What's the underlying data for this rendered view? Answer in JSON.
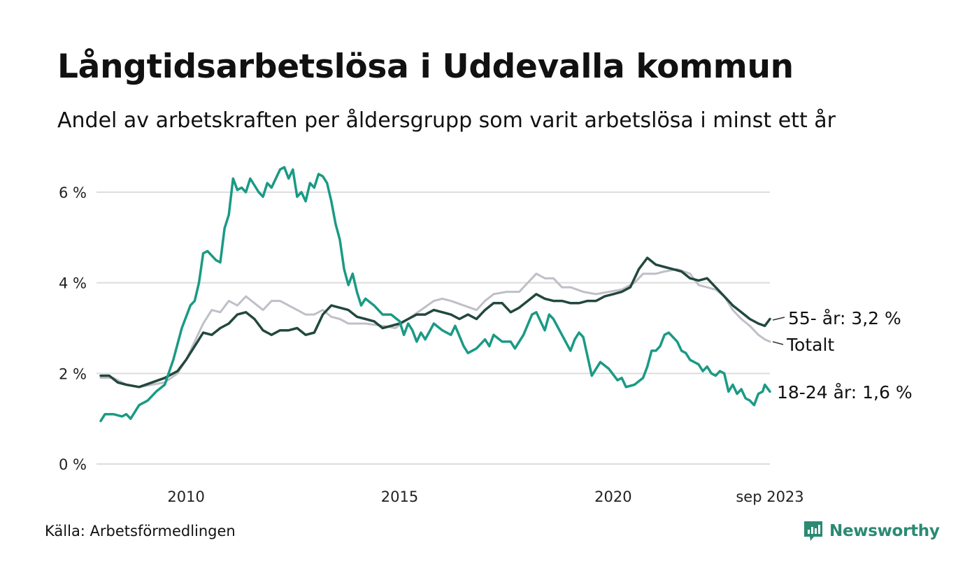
{
  "header": {
    "title": "Långtidsarbetslösa i Uddevalla kommun",
    "subtitle": "Andel av arbetskraften per åldersgrupp som varit arbetslösa i minst ett år"
  },
  "footer": {
    "source": "Källa: Arbetsförmedlingen",
    "brand": "Newsworthy"
  },
  "colors": {
    "young": "#1a9a85",
    "old": "#22483e",
    "total": "#bfbfc8",
    "grid": "#dddddd",
    "brand": "#2a8a72"
  },
  "chart_data": {
    "type": "line",
    "title": "Långtidsarbetslösa i Uddevalla kommun",
    "subtitle": "Andel av arbetskraften per åldersgrupp som varit arbetslösa i minst ett år",
    "xlabel": "",
    "ylabel": "",
    "x_range": [
      2008.0,
      2023.67
    ],
    "ylim": [
      0,
      6.6
    ],
    "y_ticks": [
      {
        "value": 0,
        "label": "0 %"
      },
      {
        "value": 2,
        "label": "2 %"
      },
      {
        "value": 4,
        "label": "4 %"
      },
      {
        "value": 6,
        "label": "6 %"
      }
    ],
    "x_ticks": [
      {
        "value": 2010,
        "label": "2010"
      },
      {
        "value": 2015,
        "label": "2015"
      },
      {
        "value": 2020,
        "label": "2020"
      },
      {
        "value": 2023.67,
        "label": "sep 2023"
      }
    ],
    "series": [
      {
        "name": "Totalt",
        "key": "total",
        "end_label": "Totalt",
        "points": [
          [
            2008.0,
            1.9
          ],
          [
            2008.3,
            1.9
          ],
          [
            2008.6,
            1.75
          ],
          [
            2008.9,
            1.7
          ],
          [
            2009.2,
            1.75
          ],
          [
            2009.5,
            1.8
          ],
          [
            2009.8,
            2.0
          ],
          [
            2010.0,
            2.3
          ],
          [
            2010.2,
            2.7
          ],
          [
            2010.4,
            3.1
          ],
          [
            2010.6,
            3.4
          ],
          [
            2010.8,
            3.35
          ],
          [
            2011.0,
            3.6
          ],
          [
            2011.2,
            3.5
          ],
          [
            2011.4,
            3.7
          ],
          [
            2011.6,
            3.55
          ],
          [
            2011.8,
            3.4
          ],
          [
            2012.0,
            3.6
          ],
          [
            2012.2,
            3.6
          ],
          [
            2012.4,
            3.5
          ],
          [
            2012.6,
            3.4
          ],
          [
            2012.8,
            3.3
          ],
          [
            2013.0,
            3.3
          ],
          [
            2013.2,
            3.4
          ],
          [
            2013.4,
            3.25
          ],
          [
            2013.6,
            3.2
          ],
          [
            2013.8,
            3.1
          ],
          [
            2014.2,
            3.1
          ],
          [
            2014.6,
            3.05
          ],
          [
            2014.9,
            3.0
          ],
          [
            2015.2,
            3.2
          ],
          [
            2015.5,
            3.4
          ],
          [
            2015.8,
            3.6
          ],
          [
            2016.0,
            3.65
          ],
          [
            2016.2,
            3.6
          ],
          [
            2016.5,
            3.5
          ],
          [
            2016.8,
            3.4
          ],
          [
            2017.0,
            3.6
          ],
          [
            2017.2,
            3.75
          ],
          [
            2017.5,
            3.8
          ],
          [
            2017.8,
            3.8
          ],
          [
            2018.0,
            4.0
          ],
          [
            2018.2,
            4.2
          ],
          [
            2018.4,
            4.1
          ],
          [
            2018.6,
            4.1
          ],
          [
            2018.8,
            3.9
          ],
          [
            2019.0,
            3.9
          ],
          [
            2019.3,
            3.8
          ],
          [
            2019.6,
            3.75
          ],
          [
            2019.9,
            3.8
          ],
          [
            2020.2,
            3.85
          ],
          [
            2020.5,
            4.0
          ],
          [
            2020.7,
            4.2
          ],
          [
            2021.0,
            4.2
          ],
          [
            2021.2,
            4.25
          ],
          [
            2021.5,
            4.3
          ],
          [
            2021.8,
            4.2
          ],
          [
            2022.0,
            3.95
          ],
          [
            2022.2,
            3.9
          ],
          [
            2022.4,
            3.85
          ],
          [
            2022.6,
            3.7
          ],
          [
            2022.8,
            3.4
          ],
          [
            2023.0,
            3.2
          ],
          [
            2023.2,
            3.05
          ],
          [
            2023.4,
            2.85
          ],
          [
            2023.55,
            2.75
          ],
          [
            2023.67,
            2.7
          ]
        ]
      },
      {
        "name": "55- år",
        "key": "old",
        "end_label": "55- år: 3,2 %",
        "points": [
          [
            2008.0,
            1.95
          ],
          [
            2008.2,
            1.95
          ],
          [
            2008.4,
            1.8
          ],
          [
            2008.6,
            1.75
          ],
          [
            2008.9,
            1.7
          ],
          [
            2009.2,
            1.8
          ],
          [
            2009.5,
            1.9
          ],
          [
            2009.8,
            2.05
          ],
          [
            2010.0,
            2.3
          ],
          [
            2010.2,
            2.6
          ],
          [
            2010.4,
            2.9
          ],
          [
            2010.6,
            2.85
          ],
          [
            2010.8,
            3.0
          ],
          [
            2011.0,
            3.1
          ],
          [
            2011.2,
            3.3
          ],
          [
            2011.4,
            3.35
          ],
          [
            2011.6,
            3.2
          ],
          [
            2011.8,
            2.95
          ],
          [
            2012.0,
            2.85
          ],
          [
            2012.2,
            2.95
          ],
          [
            2012.4,
            2.95
          ],
          [
            2012.6,
            3.0
          ],
          [
            2012.8,
            2.85
          ],
          [
            2013.0,
            2.9
          ],
          [
            2013.2,
            3.3
          ],
          [
            2013.4,
            3.5
          ],
          [
            2013.6,
            3.45
          ],
          [
            2013.8,
            3.4
          ],
          [
            2014.0,
            3.25
          ],
          [
            2014.2,
            3.2
          ],
          [
            2014.4,
            3.15
          ],
          [
            2014.6,
            3.0
          ],
          [
            2014.8,
            3.05
          ],
          [
            2015.0,
            3.1
          ],
          [
            2015.2,
            3.2
          ],
          [
            2015.4,
            3.3
          ],
          [
            2015.6,
            3.3
          ],
          [
            2015.8,
            3.4
          ],
          [
            2016.0,
            3.35
          ],
          [
            2016.2,
            3.3
          ],
          [
            2016.4,
            3.2
          ],
          [
            2016.6,
            3.3
          ],
          [
            2016.8,
            3.2
          ],
          [
            2017.0,
            3.4
          ],
          [
            2017.2,
            3.55
          ],
          [
            2017.4,
            3.55
          ],
          [
            2017.6,
            3.35
          ],
          [
            2017.8,
            3.45
          ],
          [
            2018.0,
            3.6
          ],
          [
            2018.2,
            3.75
          ],
          [
            2018.4,
            3.65
          ],
          [
            2018.6,
            3.6
          ],
          [
            2018.8,
            3.6
          ],
          [
            2019.0,
            3.55
          ],
          [
            2019.2,
            3.55
          ],
          [
            2019.4,
            3.6
          ],
          [
            2019.6,
            3.6
          ],
          [
            2019.8,
            3.7
          ],
          [
            2020.0,
            3.75
          ],
          [
            2020.2,
            3.8
          ],
          [
            2020.4,
            3.9
          ],
          [
            2020.6,
            4.3
          ],
          [
            2020.8,
            4.55
          ],
          [
            2021.0,
            4.4
          ],
          [
            2021.2,
            4.35
          ],
          [
            2021.4,
            4.3
          ],
          [
            2021.6,
            4.25
          ],
          [
            2021.8,
            4.1
          ],
          [
            2022.0,
            4.05
          ],
          [
            2022.2,
            4.1
          ],
          [
            2022.4,
            3.9
          ],
          [
            2022.6,
            3.7
          ],
          [
            2022.8,
            3.5
          ],
          [
            2023.0,
            3.35
          ],
          [
            2023.2,
            3.2
          ],
          [
            2023.4,
            3.1
          ],
          [
            2023.55,
            3.05
          ],
          [
            2023.67,
            3.2
          ]
        ]
      },
      {
        "name": "18-24 år",
        "key": "young",
        "end_label": "18-24 år: 1,6 %",
        "points": [
          [
            2008.0,
            0.95
          ],
          [
            2008.1,
            1.1
          ],
          [
            2008.3,
            1.1
          ],
          [
            2008.5,
            1.05
          ],
          [
            2008.6,
            1.1
          ],
          [
            2008.7,
            1.0
          ],
          [
            2008.9,
            1.3
          ],
          [
            2009.1,
            1.4
          ],
          [
            2009.3,
            1.6
          ],
          [
            2009.5,
            1.75
          ],
          [
            2009.7,
            2.3
          ],
          [
            2009.9,
            3.0
          ],
          [
            2010.1,
            3.5
          ],
          [
            2010.2,
            3.6
          ],
          [
            2010.3,
            4.0
          ],
          [
            2010.4,
            4.65
          ],
          [
            2010.5,
            4.7
          ],
          [
            2010.6,
            4.6
          ],
          [
            2010.7,
            4.5
          ],
          [
            2010.8,
            4.45
          ],
          [
            2010.9,
            5.2
          ],
          [
            2011.0,
            5.5
          ],
          [
            2011.1,
            6.3
          ],
          [
            2011.2,
            6.05
          ],
          [
            2011.3,
            6.1
          ],
          [
            2011.4,
            6.0
          ],
          [
            2011.5,
            6.3
          ],
          [
            2011.7,
            6.0
          ],
          [
            2011.8,
            5.9
          ],
          [
            2011.9,
            6.2
          ],
          [
            2012.0,
            6.1
          ],
          [
            2012.2,
            6.5
          ],
          [
            2012.3,
            6.55
          ],
          [
            2012.4,
            6.3
          ],
          [
            2012.5,
            6.5
          ],
          [
            2012.6,
            5.9
          ],
          [
            2012.7,
            6.0
          ],
          [
            2012.8,
            5.8
          ],
          [
            2012.9,
            6.2
          ],
          [
            2013.0,
            6.1
          ],
          [
            2013.1,
            6.4
          ],
          [
            2013.2,
            6.35
          ],
          [
            2013.3,
            6.2
          ],
          [
            2013.4,
            5.8
          ],
          [
            2013.5,
            5.3
          ],
          [
            2013.6,
            4.95
          ],
          [
            2013.7,
            4.3
          ],
          [
            2013.8,
            3.95
          ],
          [
            2013.9,
            4.2
          ],
          [
            2014.0,
            3.8
          ],
          [
            2014.1,
            3.5
          ],
          [
            2014.2,
            3.65
          ],
          [
            2014.4,
            3.5
          ],
          [
            2014.6,
            3.3
          ],
          [
            2014.8,
            3.3
          ],
          [
            2015.0,
            3.15
          ],
          [
            2015.1,
            2.85
          ],
          [
            2015.2,
            3.1
          ],
          [
            2015.3,
            2.95
          ],
          [
            2015.4,
            2.7
          ],
          [
            2015.5,
            2.9
          ],
          [
            2015.6,
            2.75
          ],
          [
            2015.8,
            3.1
          ],
          [
            2016.0,
            2.95
          ],
          [
            2016.2,
            2.85
          ],
          [
            2016.3,
            3.05
          ],
          [
            2016.5,
            2.6
          ],
          [
            2016.6,
            2.45
          ],
          [
            2016.8,
            2.55
          ],
          [
            2017.0,
            2.75
          ],
          [
            2017.1,
            2.6
          ],
          [
            2017.2,
            2.85
          ],
          [
            2017.4,
            2.7
          ],
          [
            2017.6,
            2.7
          ],
          [
            2017.7,
            2.55
          ],
          [
            2017.9,
            2.85
          ],
          [
            2018.1,
            3.3
          ],
          [
            2018.2,
            3.35
          ],
          [
            2018.3,
            3.15
          ],
          [
            2018.4,
            2.95
          ],
          [
            2018.5,
            3.3
          ],
          [
            2018.6,
            3.2
          ],
          [
            2018.8,
            2.85
          ],
          [
            2019.0,
            2.5
          ],
          [
            2019.1,
            2.75
          ],
          [
            2019.2,
            2.9
          ],
          [
            2019.3,
            2.8
          ],
          [
            2019.5,
            1.95
          ],
          [
            2019.7,
            2.25
          ],
          [
            2019.9,
            2.1
          ],
          [
            2020.1,
            1.85
          ],
          [
            2020.2,
            1.9
          ],
          [
            2020.3,
            1.7
          ],
          [
            2020.5,
            1.75
          ],
          [
            2020.7,
            1.9
          ],
          [
            2020.8,
            2.15
          ],
          [
            2020.9,
            2.5
          ],
          [
            2021.0,
            2.5
          ],
          [
            2021.1,
            2.6
          ],
          [
            2021.2,
            2.85
          ],
          [
            2021.3,
            2.9
          ],
          [
            2021.5,
            2.7
          ],
          [
            2021.6,
            2.5
          ],
          [
            2021.7,
            2.45
          ],
          [
            2021.8,
            2.3
          ],
          [
            2022.0,
            2.2
          ],
          [
            2022.1,
            2.05
          ],
          [
            2022.2,
            2.15
          ],
          [
            2022.3,
            2.0
          ],
          [
            2022.4,
            1.95
          ],
          [
            2022.5,
            2.05
          ],
          [
            2022.6,
            2.0
          ],
          [
            2022.7,
            1.6
          ],
          [
            2022.8,
            1.75
          ],
          [
            2022.9,
            1.55
          ],
          [
            2023.0,
            1.65
          ],
          [
            2023.1,
            1.45
          ],
          [
            2023.2,
            1.4
          ],
          [
            2023.3,
            1.3
          ],
          [
            2023.4,
            1.55
          ],
          [
            2023.5,
            1.6
          ],
          [
            2023.55,
            1.75
          ],
          [
            2023.67,
            1.6
          ]
        ]
      }
    ]
  }
}
